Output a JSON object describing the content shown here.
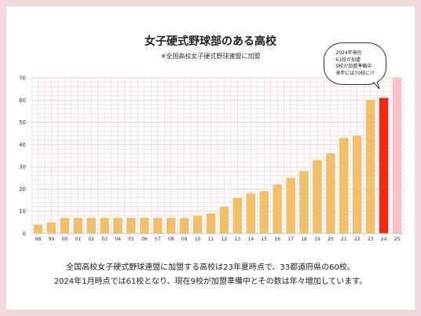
{
  "chart_data": {
    "type": "bar",
    "title": "女子硬式野球部のある高校",
    "subtitle": "※全国高校女子硬式野球連盟に加盟",
    "categories": [
      "98",
      "99",
      "00",
      "01",
      "02",
      "03",
      "04",
      "05",
      "06",
      "07",
      "08",
      "09",
      "10",
      "11",
      "12",
      "13",
      "14",
      "15",
      "16",
      "17",
      "18",
      "19",
      "20",
      "21",
      "22",
      "23",
      "24",
      "25"
    ],
    "values": [
      4,
      5,
      7,
      7,
      7,
      7,
      7,
      7,
      7,
      7,
      7,
      7,
      8,
      9,
      12,
      16,
      18,
      19,
      22,
      25,
      28,
      33,
      36,
      43,
      44,
      60,
      61,
      null
    ],
    "highlight_category": "24",
    "projected_category": "25",
    "projected_value": 70,
    "yticks": [
      0,
      10,
      20,
      30,
      40,
      50,
      60,
      70
    ],
    "ylim": [
      0,
      70
    ],
    "grid": true,
    "colors": {
      "bar": "#f2c06a",
      "highlight": "#ee2a10",
      "projected": "#f8c4c8",
      "grid": "#f4c9cd"
    },
    "callout": {
      "lines": [
        "2024年現在",
        "61校が加盟",
        "9校が加盟準備中",
        "来年には70校に!?"
      ]
    }
  },
  "footer": {
    "line1": "全国高校女子硬式野球連盟に加盟する高校は23年夏時点で、33都道府県の60校。",
    "line2": "2024年1月時点では61校となり、現在9校が加盟準備中とその数は年々増加しています。"
  }
}
